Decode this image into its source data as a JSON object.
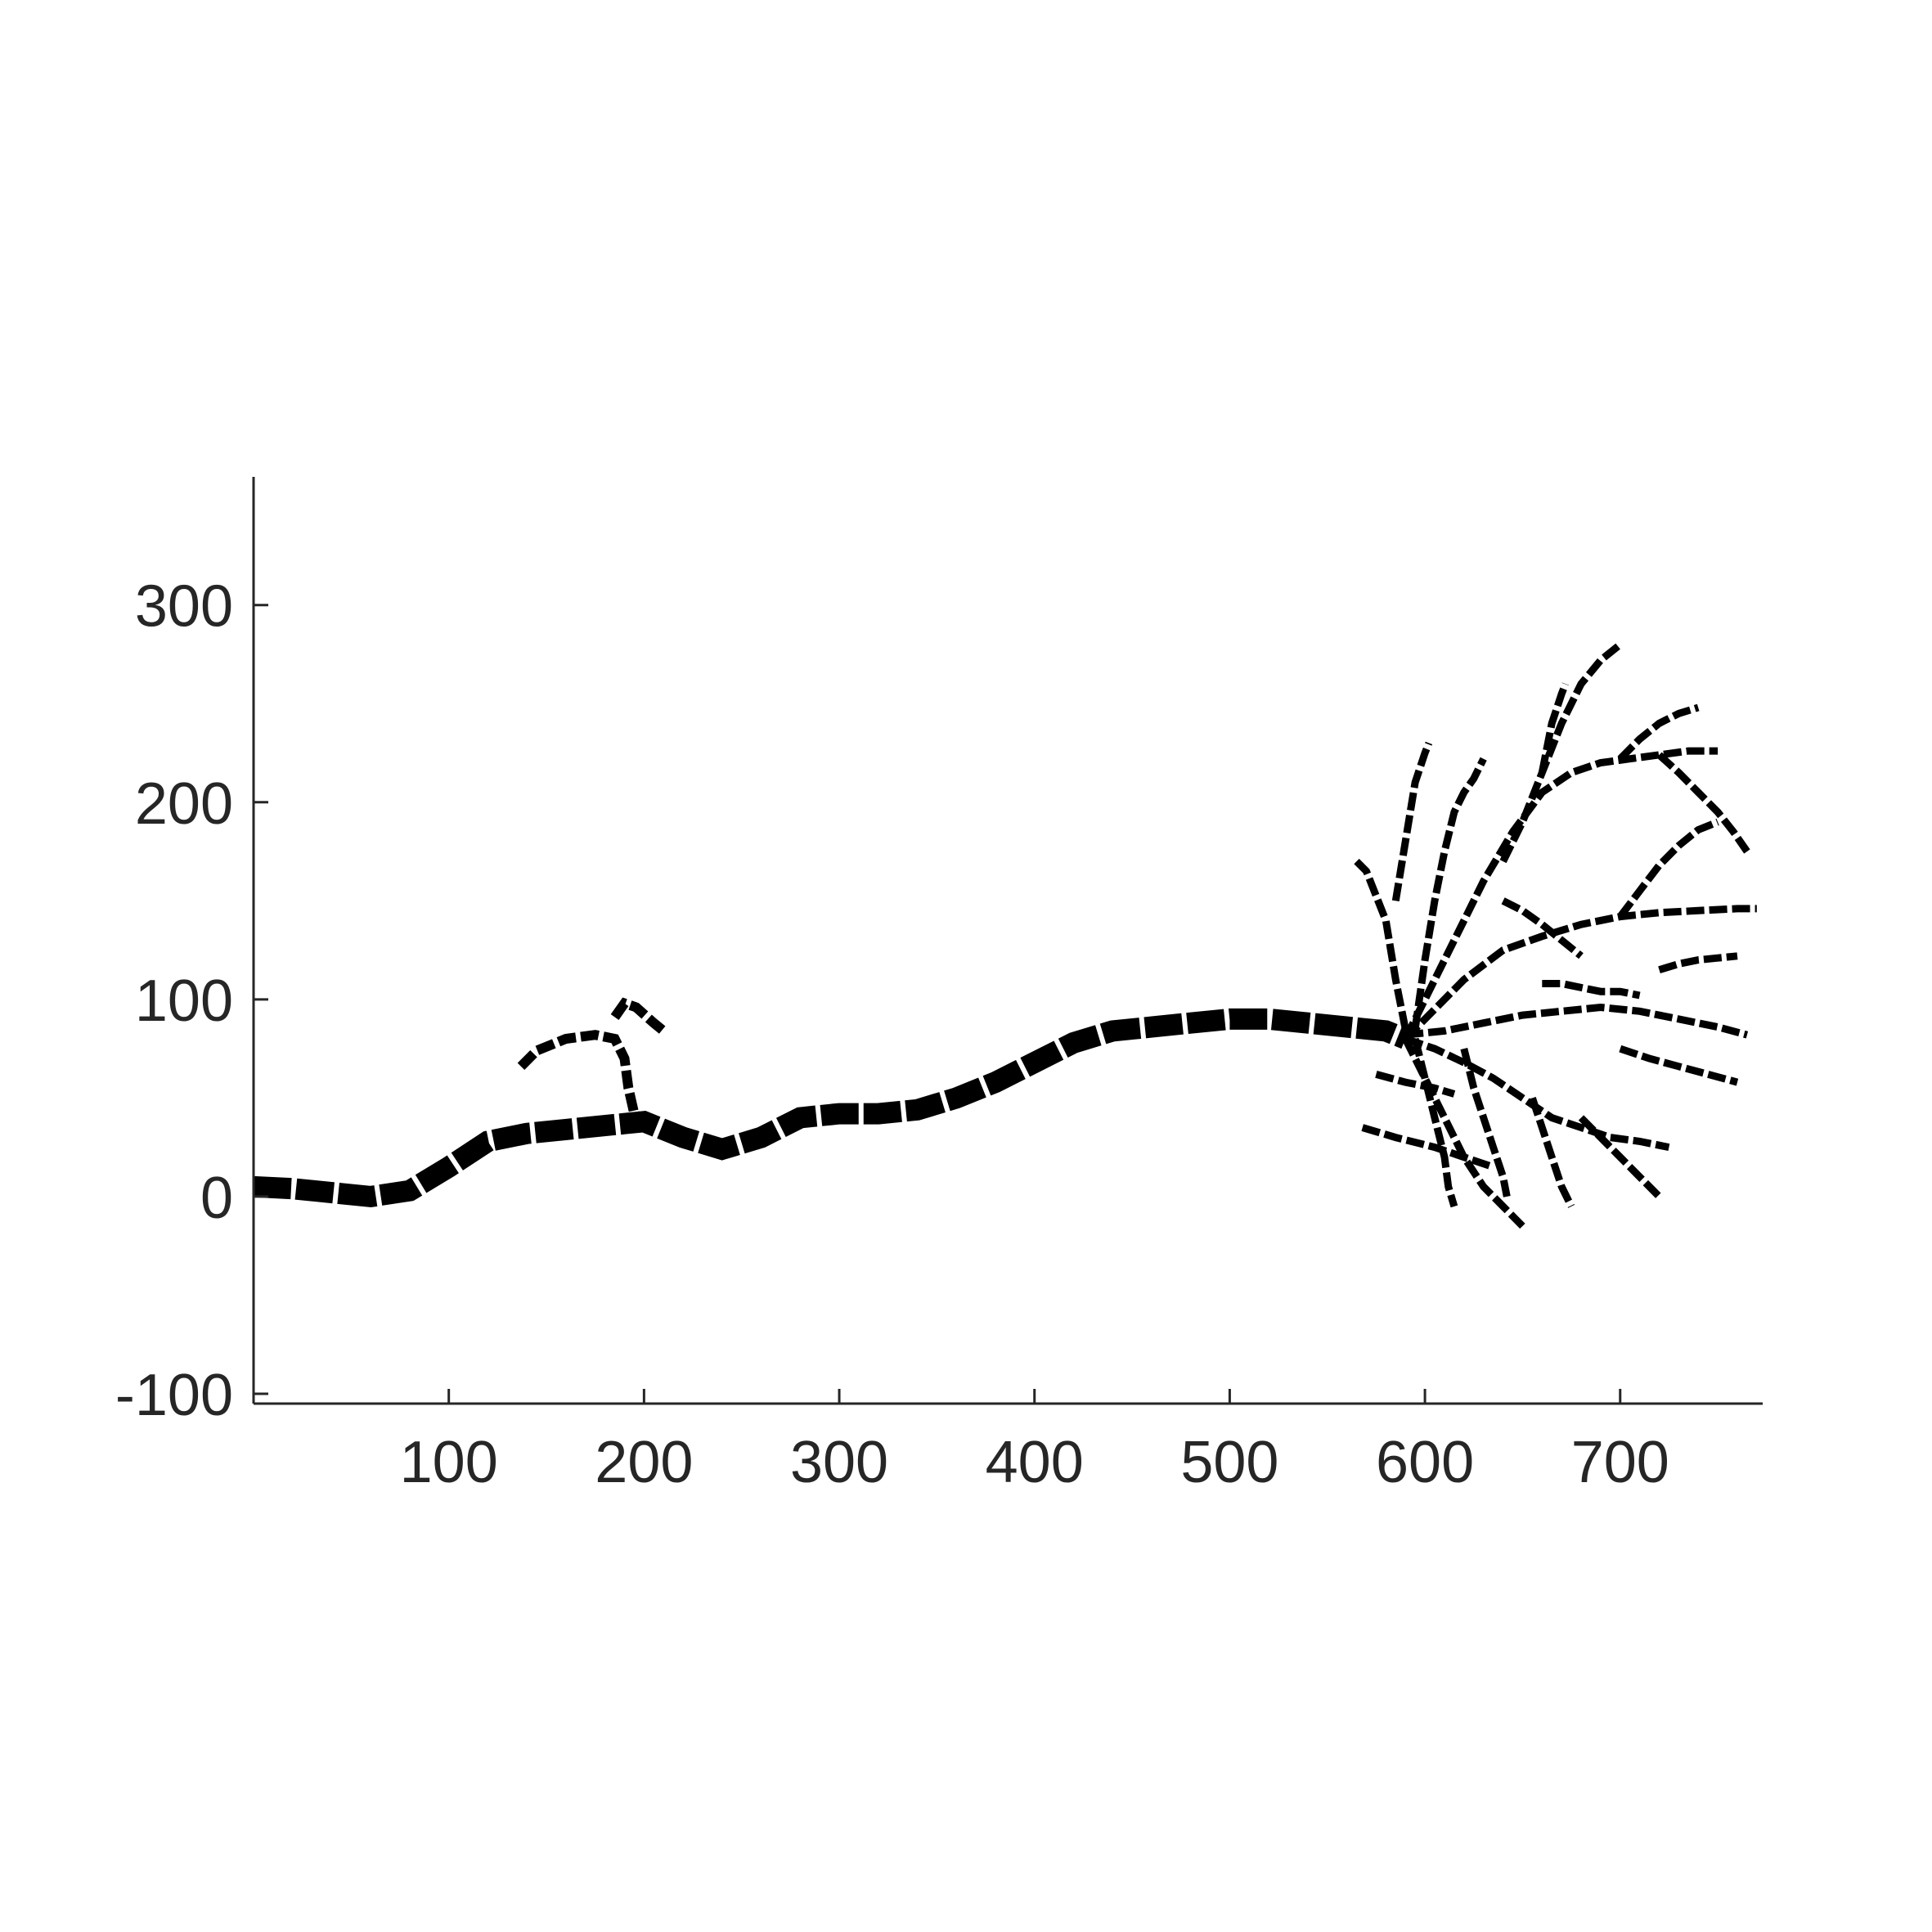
{
  "chart_data": {
    "type": "line",
    "title": "",
    "xlabel": "",
    "ylabel": "",
    "xlim": [
      0,
      773
    ],
    "ylim": [
      -105,
      365
    ],
    "x_ticks": [
      100,
      200,
      300,
      400,
      500,
      600,
      700
    ],
    "x_tick_labels": [
      "100",
      "200",
      "300",
      "400",
      "500",
      "600",
      "700"
    ],
    "y_ticks": [
      -100,
      0,
      100,
      200,
      300
    ],
    "y_tick_labels": [
      "-100",
      "0",
      "100",
      "200",
      "300"
    ],
    "grid": false,
    "legend": "none",
    "line_color": "#000000",
    "line_style": "dashed",
    "series": [
      {
        "x": [
          0,
          20,
          40,
          60,
          80,
          100,
          120,
          140,
          160,
          180,
          200,
          220,
          240,
          260,
          280,
          300,
          320,
          340,
          360,
          380,
          400,
          420,
          440,
          460,
          480,
          500,
          520,
          540,
          560,
          580,
          590
        ],
        "y": [
          5,
          4,
          2,
          0,
          3,
          15,
          28,
          32,
          34,
          36,
          38,
          30,
          24,
          30,
          40,
          42,
          42,
          44,
          50,
          58,
          68,
          78,
          84,
          86,
          88,
          90,
          90,
          88,
          86,
          84,
          80
        ]
      },
      {
        "x": [
          137,
          145,
          160,
          175,
          185,
          190,
          192,
          195,
          200
        ],
        "y": [
          66,
          74,
          80,
          82,
          80,
          70,
          55,
          42,
          38
        ]
      },
      {
        "x": [
          185,
          190,
          196,
          205,
          210
        ],
        "y": [
          91,
          98,
          96,
          88,
          84
        ]
      },
      {
        "x": [
          590,
          605,
          620,
          640,
          660,
          680,
          700,
          720,
          740,
          760,
          770
        ],
        "y": [
          80,
          95,
          110,
          125,
          132,
          138,
          142,
          144,
          145,
          146,
          146
        ]
      },
      {
        "x": [
          590,
          600,
          615,
          630,
          645,
          660,
          675,
          690,
          705,
          720,
          735,
          750
        ],
        "y": [
          80,
          100,
          130,
          160,
          185,
          205,
          215,
          220,
          222,
          224,
          226,
          226
        ]
      },
      {
        "x": [
          595,
          600,
          605,
          610,
          615,
          620,
          625,
          630
        ],
        "y": [
          85,
          120,
          150,
          175,
          195,
          205,
          212,
          222
        ]
      },
      {
        "x": [
          590,
          610,
          630,
          650,
          670,
          690,
          710,
          730,
          750,
          765
        ],
        "y": [
          82,
          84,
          88,
          92,
          94,
          96,
          94,
          90,
          86,
          82
        ]
      },
      {
        "x": [
          590,
          605,
          620,
          635,
          650,
          665,
          680,
          695,
          710,
          725
        ],
        "y": [
          80,
          75,
          68,
          60,
          50,
          40,
          35,
          30,
          28,
          25
        ]
      },
      {
        "x": [
          590,
          600,
          610,
          620,
          630,
          640,
          650
        ],
        "y": [
          80,
          60,
          40,
          20,
          5,
          -5,
          -15
        ]
      },
      {
        "x": [
          595,
          600,
          605,
          610,
          612,
          615
        ],
        "y": [
          80,
          60,
          40,
          20,
          5,
          -5
        ]
      },
      {
        "x": [
          620,
          625,
          630,
          635,
          640,
          642
        ],
        "y": [
          75,
          55,
          40,
          25,
          10,
          0
        ]
      },
      {
        "x": [
          655,
          660,
          665,
          670,
          675
        ],
        "y": [
          50,
          35,
          20,
          5,
          -5
        ]
      },
      {
        "x": [
          680,
          690,
          700,
          710,
          720
        ],
        "y": [
          40,
          30,
          20,
          10,
          0
        ]
      },
      {
        "x": [
          590,
          585,
          580,
          570,
          565
        ],
        "y": [
          85,
          110,
          140,
          165,
          170
        ]
      },
      {
        "x": [
          585,
          590,
          595,
          600,
          602
        ],
        "y": [
          150,
          180,
          210,
          225,
          230
        ]
      },
      {
        "x": [
          640,
          650,
          660,
          670,
          680,
          690,
          700
        ],
        "y": [
          170,
          190,
          215,
          240,
          260,
          272,
          280
        ]
      },
      {
        "x": [
          660,
          665,
          670,
          672
        ],
        "y": [
          215,
          240,
          255,
          260
        ]
      },
      {
        "x": [
          700,
          710,
          720,
          730,
          740,
          750
        ],
        "y": [
          142,
          155,
          168,
          178,
          186,
          190
        ]
      },
      {
        "x": [
          720,
          730,
          740,
          750,
          760
        ],
        "y": [
          115,
          118,
          120,
          121,
          122
        ]
      },
      {
        "x": [
          700,
          715,
          730,
          745,
          760
        ],
        "y": [
          75,
          70,
          66,
          62,
          58
        ]
      },
      {
        "x": [
          660,
          670,
          680,
          690,
          700,
          710
        ],
        "y": [
          108,
          108,
          106,
          104,
          104,
          102
        ]
      },
      {
        "x": [
          700,
          710,
          720,
          730,
          740
        ],
        "y": [
          222,
          232,
          240,
          245,
          248
        ]
      },
      {
        "x": [
          720,
          730,
          740,
          750,
          758,
          765
        ],
        "y": [
          224,
          215,
          205,
          195,
          185,
          175
        ]
      },
      {
        "x": [
          568,
          585,
          605,
          620,
          635
        ],
        "y": [
          35,
          30,
          25,
          20,
          15
        ]
      },
      {
        "x": [
          575,
          590,
          605,
          615
        ],
        "y": [
          62,
          58,
          55,
          52
        ]
      },
      {
        "x": [
          640,
          650,
          660,
          670,
          680
        ],
        "y": [
          150,
          145,
          138,
          130,
          122
        ]
      }
    ]
  }
}
